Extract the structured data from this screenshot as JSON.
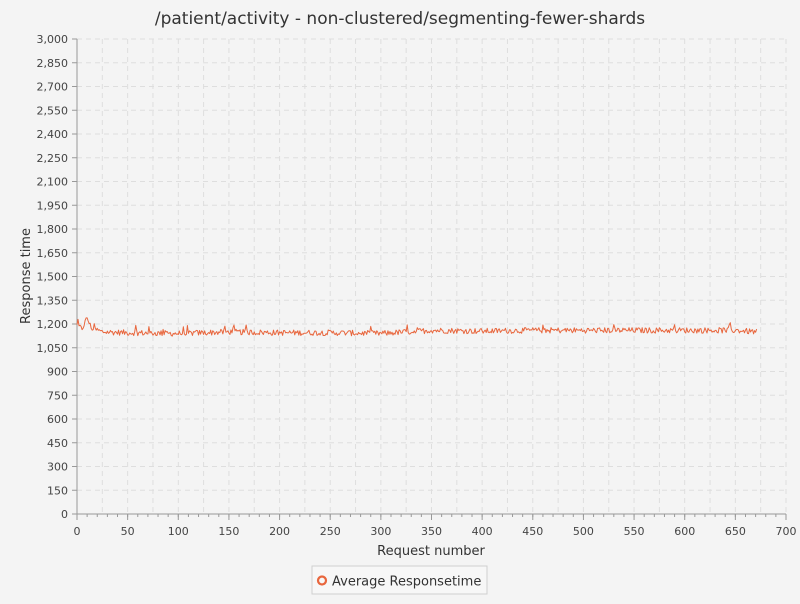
{
  "chart_data": {
    "type": "line",
    "title": "/patient/activity - non-clustered/segmenting-fewer-shards",
    "xlabel": "Request number",
    "ylabel": "Response time",
    "xlim": [
      0,
      700
    ],
    "ylim": [
      0,
      3000
    ],
    "x_ticks": [
      0,
      50,
      100,
      150,
      200,
      250,
      300,
      350,
      400,
      450,
      500,
      550,
      600,
      650,
      700
    ],
    "x_tick_labels": [
      "0",
      "50",
      "100",
      "150",
      "200",
      "250",
      "300",
      "350",
      "400",
      "450",
      "500",
      "550",
      "600",
      "650",
      "700"
    ],
    "y_ticks": [
      0,
      150,
      300,
      450,
      600,
      750,
      900,
      1050,
      1200,
      1350,
      1500,
      1650,
      1800,
      1950,
      2100,
      2250,
      2400,
      2550,
      2700,
      2850,
      3000
    ],
    "y_tick_labels": [
      "0",
      "150",
      "300",
      "450",
      "600",
      "750",
      "900",
      "1,050",
      "1,200",
      "1,350",
      "1,500",
      "1,650",
      "1,800",
      "1,950",
      "2,100",
      "2,250",
      "2,400",
      "2,550",
      "2,700",
      "2,850",
      "3,000"
    ],
    "grid": true,
    "legend_position": "bottom-center",
    "series": [
      {
        "name": "Average Responsetime",
        "color": "#e8663d",
        "x_range": [
          0,
          671
        ],
        "profile": [
          [
            0,
            1190
          ],
          [
            5,
            1170
          ],
          [
            10,
            1240
          ],
          [
            14,
            1175
          ],
          [
            25,
            1150
          ],
          [
            50,
            1145
          ],
          [
            100,
            1140
          ],
          [
            150,
            1150
          ],
          [
            200,
            1145
          ],
          [
            250,
            1145
          ],
          [
            300,
            1140
          ],
          [
            350,
            1160
          ],
          [
            400,
            1155
          ],
          [
            450,
            1160
          ],
          [
            500,
            1160
          ],
          [
            550,
            1160
          ],
          [
            600,
            1160
          ],
          [
            650,
            1160
          ],
          [
            671,
            1150
          ]
        ],
        "noise": 18
      }
    ]
  }
}
